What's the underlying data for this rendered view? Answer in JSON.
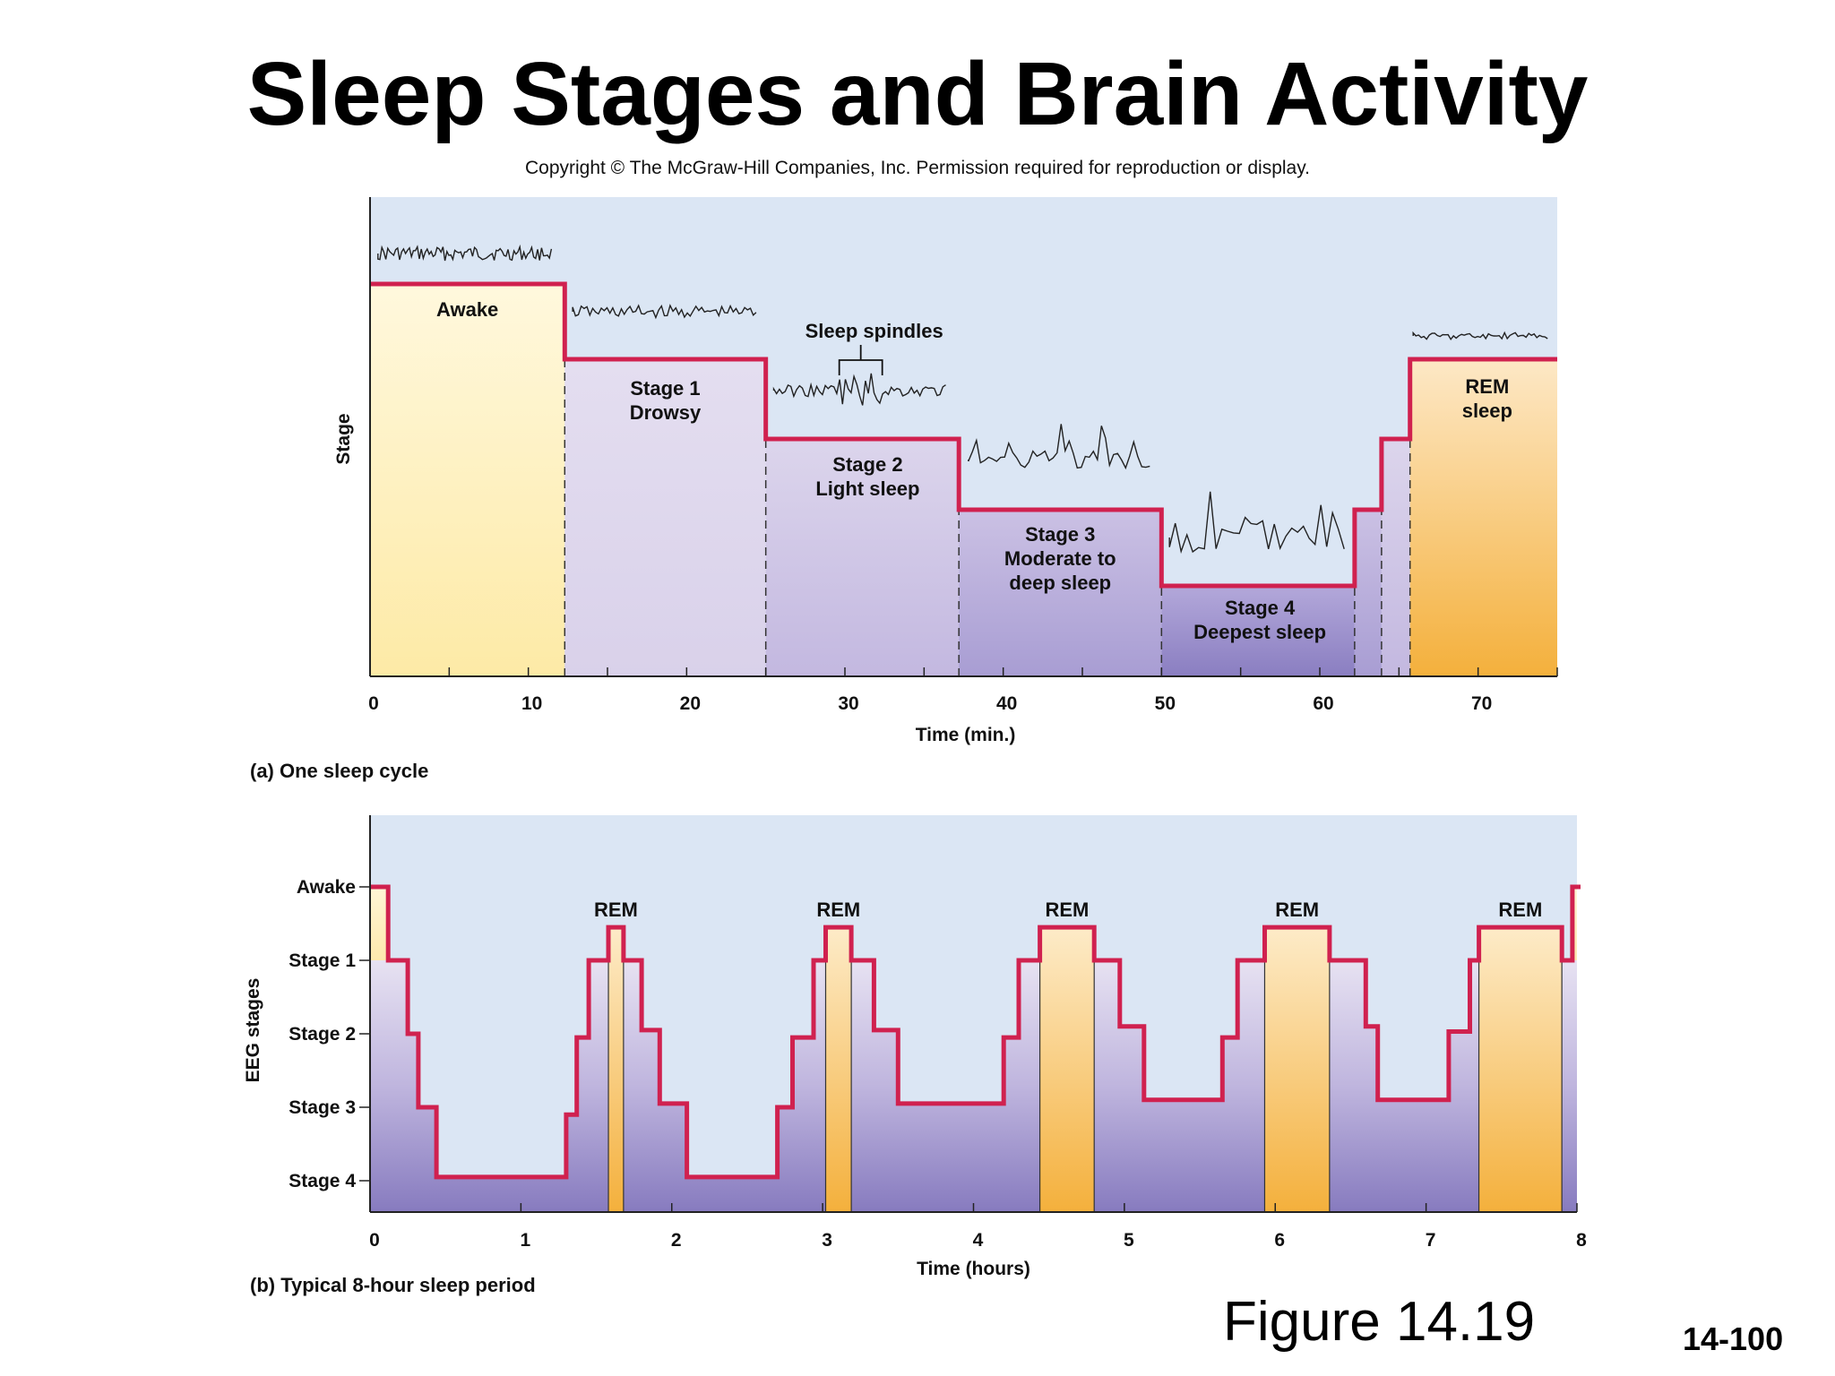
{
  "slide": {
    "title": "Sleep Stages and Brain Activity",
    "copyright": "Copyright © The McGraw-Hill Companies, Inc. Permission required for reproduction or display.",
    "figure_label": "Figure 14.19",
    "slide_number": "14-100",
    "caption_a": "(a) One sleep cycle",
    "caption_b": "(b) Typical 8-hour sleep period"
  },
  "colors": {
    "hypnogram_line": "#d0214f",
    "background_panel": "#dbe6f4",
    "awake_fill": "#fdeeb4",
    "light_stage_fill": "#ddd6ec",
    "deep_stage_fill": "#8c80bf",
    "rem_fill": "#f4b03c"
  },
  "chart_data": [
    {
      "type": "line",
      "subtype": "step",
      "panel": "(a) One sleep cycle",
      "xlabel": "Time (min.)",
      "ylabel": "Stage",
      "xlim": [
        0,
        75
      ],
      "xticks": [
        0,
        10,
        20,
        30,
        40,
        50,
        60,
        70
      ],
      "stage_levels": {
        "Awake": 5,
        "REM": 4,
        "Stage 1": 4,
        "Stage 2": 3,
        "Stage 3": 2,
        "Stage 4": 1
      },
      "segments": [
        {
          "start": 0,
          "end": 12.3,
          "stage": "Awake",
          "level": 5,
          "label_lines": [
            "Awake"
          ]
        },
        {
          "start": 12.3,
          "end": 25,
          "stage": "Stage 1",
          "level": 4,
          "label_lines": [
            "Stage 1",
            "Drowsy"
          ]
        },
        {
          "start": 25,
          "end": 37.2,
          "stage": "Stage 2",
          "level": 3,
          "label_lines": [
            "Stage 2",
            "Light sleep"
          ]
        },
        {
          "start": 37.2,
          "end": 50,
          "stage": "Stage 3",
          "level": 2,
          "label_lines": [
            "Stage 3",
            "Moderate to",
            "deep sleep"
          ]
        },
        {
          "start": 50,
          "end": 62.2,
          "stage": "Stage 4",
          "level": 1,
          "label_lines": [
            "Stage 4",
            "Deepest sleep"
          ]
        },
        {
          "start": 62.2,
          "end": 63.9,
          "stage": "Stage 3",
          "level": 2,
          "label_lines": []
        },
        {
          "start": 63.9,
          "end": 65.7,
          "stage": "Stage 2",
          "level": 3,
          "label_lines": []
        },
        {
          "start": 65.7,
          "end": 75,
          "stage": "REM",
          "level": 4,
          "label_lines": [
            "REM",
            "sleep"
          ]
        }
      ],
      "annotations": [
        {
          "text": "Sleep spindles",
          "x": 31,
          "stage": "Stage 2"
        }
      ],
      "eeg_traces": [
        {
          "stage": "Awake",
          "x_start": 0.5,
          "x_end": 11.5,
          "pattern": "low amplitude, high frequency"
        },
        {
          "stage": "Stage 1",
          "x_start": 12.8,
          "x_end": 24.5,
          "pattern": "low amplitude, mixed frequency"
        },
        {
          "stage": "Stage 2",
          "x_start": 25.5,
          "x_end": 36.5,
          "pattern": "sleep spindles"
        },
        {
          "stage": "Stage 3",
          "x_start": 37.8,
          "x_end": 49.5,
          "pattern": "occasional large waves"
        },
        {
          "stage": "Stage 4",
          "x_start": 50.5,
          "x_end": 61.8,
          "pattern": "large slow waves"
        },
        {
          "stage": "REM",
          "x_start": 65.9,
          "x_end": 74.5,
          "pattern": "low amplitude, high frequency"
        }
      ]
    },
    {
      "type": "line",
      "subtype": "step",
      "panel": "(b) Typical 8-hour sleep period",
      "xlabel": "Time (hours)",
      "ylabel": "EEG stages",
      "xlim": [
        0,
        8
      ],
      "xticks": [
        0,
        1,
        2,
        3,
        4,
        5,
        6,
        7,
        8
      ],
      "yticks": [
        "Awake",
        "Stage 1",
        "Stage 2",
        "Stage 3",
        "Stage 4"
      ],
      "rem_label": "REM",
      "points": [
        [
          0,
          0
        ],
        [
          0.12,
          0
        ],
        [
          0.12,
          1
        ],
        [
          0.25,
          1
        ],
        [
          0.25,
          2
        ],
        [
          0.32,
          2
        ],
        [
          0.32,
          3
        ],
        [
          0.44,
          3
        ],
        [
          0.44,
          3.95
        ],
        [
          1.3,
          3.95
        ],
        [
          1.3,
          3.1
        ],
        [
          1.37,
          3.1
        ],
        [
          1.37,
          2.05
        ],
        [
          1.45,
          2.05
        ],
        [
          1.45,
          1
        ],
        [
          1.58,
          1
        ],
        [
          1.58,
          0.55
        ],
        [
          1.68,
          0.55
        ],
        [
          1.68,
          1
        ],
        [
          1.8,
          1
        ],
        [
          1.8,
          1.95
        ],
        [
          1.92,
          1.95
        ],
        [
          1.92,
          2.95
        ],
        [
          2.1,
          2.95
        ],
        [
          2.1,
          3.95
        ],
        [
          2.7,
          3.95
        ],
        [
          2.7,
          3
        ],
        [
          2.8,
          3
        ],
        [
          2.8,
          2.05
        ],
        [
          2.94,
          2.05
        ],
        [
          2.94,
          1
        ],
        [
          3.02,
          1
        ],
        [
          3.02,
          0.55
        ],
        [
          3.19,
          0.55
        ],
        [
          3.19,
          1
        ],
        [
          3.34,
          1
        ],
        [
          3.34,
          1.95
        ],
        [
          3.5,
          1.95
        ],
        [
          3.5,
          2.95
        ],
        [
          4.2,
          2.95
        ],
        [
          4.2,
          2.05
        ],
        [
          4.3,
          2.05
        ],
        [
          4.3,
          1
        ],
        [
          4.44,
          1
        ],
        [
          4.44,
          0.55
        ],
        [
          4.8,
          0.55
        ],
        [
          4.8,
          1
        ],
        [
          4.97,
          1
        ],
        [
          4.97,
          1.9
        ],
        [
          5.13,
          1.9
        ],
        [
          5.13,
          2.9
        ],
        [
          5.65,
          2.9
        ],
        [
          5.65,
          2.05
        ],
        [
          5.75,
          2.05
        ],
        [
          5.75,
          1
        ],
        [
          5.93,
          1
        ],
        [
          5.93,
          0.55
        ],
        [
          6.36,
          0.55
        ],
        [
          6.36,
          1
        ],
        [
          6.6,
          1
        ],
        [
          6.6,
          1.9
        ],
        [
          6.68,
          1.9
        ],
        [
          6.68,
          2.9
        ],
        [
          7.15,
          2.9
        ],
        [
          7.15,
          1.97
        ],
        [
          7.29,
          1.97
        ],
        [
          7.29,
          1
        ],
        [
          7.35,
          1
        ],
        [
          7.35,
          0.55
        ],
        [
          7.9,
          0.55
        ],
        [
          7.9,
          1
        ],
        [
          7.97,
          1
        ],
        [
          7.97,
          0
        ],
        [
          8.05,
          0
        ]
      ],
      "rem_periods": [
        [
          1.58,
          1.68
        ],
        [
          3.02,
          3.19
        ],
        [
          4.44,
          4.8
        ],
        [
          5.93,
          6.36
        ],
        [
          7.35,
          7.9
        ]
      ],
      "awake_periods": [
        [
          0,
          0.12
        ],
        [
          7.97,
          8.05
        ]
      ]
    }
  ]
}
